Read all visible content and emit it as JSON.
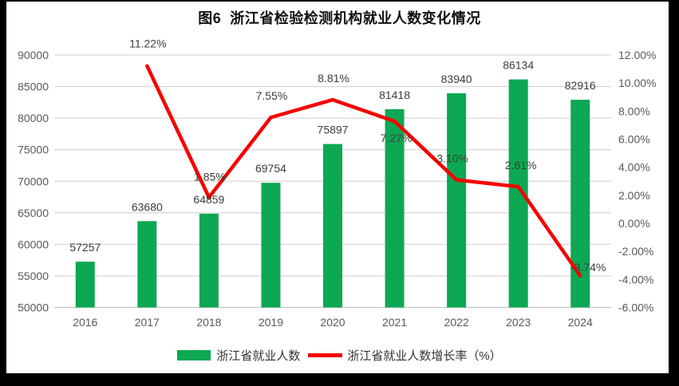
{
  "page": {
    "frame_color": "#000000",
    "panel_color": "#ffffff"
  },
  "chart_data": {
    "type": "bar+line combo",
    "title": "图6  浙江省检验检测机构就业人数变化情况",
    "categories": [
      "2016",
      "2017",
      "2018",
      "2019",
      "2020",
      "2021",
      "2022",
      "2023",
      "2024"
    ],
    "series": [
      {
        "name": "浙江省就业人数",
        "type": "bar",
        "axis": "left",
        "color": "#0ca853",
        "values": [
          57257,
          63680,
          64859,
          69754,
          75897,
          81418,
          83940,
          86134,
          82916
        ],
        "labels": [
          "57257",
          "63680",
          "64859",
          "69754",
          "75897",
          "81418",
          "83940",
          "86134",
          "82916"
        ]
      },
      {
        "name": "浙江省就业人数增长率（%）",
        "type": "line",
        "axis": "right",
        "color": "#f60000",
        "values": [
          null,
          11.22,
          1.85,
          7.55,
          8.81,
          7.27,
          3.1,
          2.61,
          -3.74
        ],
        "labels": [
          null,
          "11.22%",
          "1.85%",
          "7.55%",
          "8.81%",
          "7.27%",
          "3.10%",
          "2.61%",
          "-3.74%"
        ]
      }
    ],
    "left_axis": {
      "min": 50000,
      "max": 90000,
      "step": 5000,
      "tick_labels": [
        "90000",
        "85000",
        "80000",
        "75000",
        "70000",
        "65000",
        "60000",
        "55000",
        "50000"
      ]
    },
    "right_axis": {
      "min": -6,
      "max": 12,
      "step": 2,
      "tick_labels": [
        "12.00%",
        "10.00%",
        "8.00%",
        "6.00%",
        "4.00%",
        "2.00%",
        "0.00%",
        "-2.00%",
        "-4.00%",
        "-6.00%"
      ]
    },
    "grid": "horizontal",
    "legend_position": "bottom",
    "colors": {
      "grid": "#d9d9d9",
      "baseline": "#c6c6c6",
      "tick_text": "#595959",
      "data_label_text": "#3d3d3d"
    }
  }
}
